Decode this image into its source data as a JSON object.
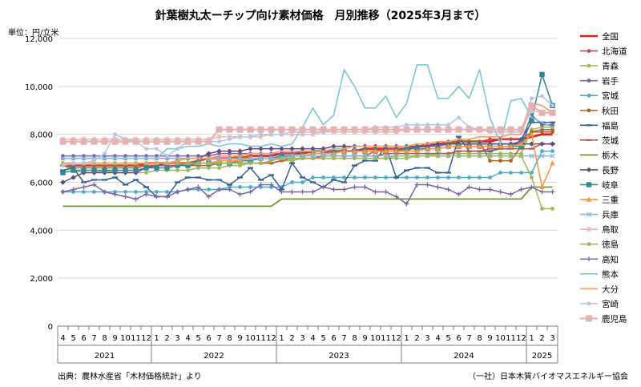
{
  "chart_data": {
    "type": "line",
    "title": "針葉樹丸太ーチップ向け素材価格　月別推移（2025年3月まで）",
    "ylabel": "単位：円/立米",
    "ylim": [
      0,
      12000
    ],
    "yticks": [
      "0",
      "2,000",
      "4,000",
      "6,000",
      "8,000",
      "10,000",
      "12,000"
    ],
    "grid": true,
    "legend_position": "right",
    "x_month_labels": [
      "4",
      "5",
      "6",
      "7",
      "8",
      "9",
      "10",
      "11",
      "12",
      "1",
      "2",
      "3",
      "4",
      "5",
      "6",
      "7",
      "8",
      "9",
      "10",
      "11",
      "12",
      "1",
      "2",
      "3",
      "4",
      "5",
      "6",
      "7",
      "8",
      "9",
      "10",
      "11",
      "12",
      "1",
      "2",
      "3",
      "4",
      "5",
      "6",
      "7",
      "8",
      "9",
      "10",
      "11",
      "12",
      "1",
      "2",
      "3"
    ],
    "x_year_groups": [
      {
        "label": "2021",
        "start": 0,
        "count": 9
      },
      {
        "label": "2022",
        "start": 9,
        "count": 12
      },
      {
        "label": "2023",
        "start": 21,
        "count": 12
      },
      {
        "label": "2024",
        "start": 33,
        "count": 12
      },
      {
        "label": "2025",
        "start": 45,
        "count": 3
      }
    ],
    "source_note": "出典：農林水産省「木材価格統計」より",
    "credit_note": "（一社）日本木質バイオマスエネルギー協会",
    "series": [
      {
        "name": "全国",
        "color": "#e0211b",
        "marker": "none",
        "width": 2.6,
        "values": [
          6700,
          6700,
          6700,
          6700,
          6700,
          6700,
          6700,
          6700,
          6800,
          6800,
          6800,
          6800,
          6800,
          6900,
          7000,
          7000,
          7000,
          7000,
          7100,
          7100,
          7100,
          7200,
          7200,
          7200,
          7300,
          7300,
          7300,
          7300,
          7300,
          7400,
          7400,
          7400,
          7400,
          7400,
          7500,
          7500,
          7600,
          7600,
          7700,
          7700,
          7700,
          7700,
          7800,
          7800,
          7800,
          7900,
          8000,
          8000
        ]
      },
      {
        "name": "北海道",
        "color": "#c0504d",
        "marker": "circle",
        "values": [
          7000,
          7000,
          7000,
          7000,
          7000,
          7000,
          7000,
          7000,
          7000,
          7000,
          7000,
          7000,
          7000,
          7000,
          7000,
          7000,
          7000,
          7000,
          7000,
          7000,
          7000,
          7100,
          7100,
          7100,
          7200,
          7200,
          7300,
          7300,
          7300,
          7300,
          7300,
          7400,
          7400,
          7400,
          7500,
          7600,
          7600,
          7700,
          7700,
          7700,
          7700,
          7800,
          7800,
          7800,
          7800,
          8100,
          8200,
          8200
        ]
      },
      {
        "name": "青森",
        "color": "#9bbb59",
        "marker": "circle",
        "values": [
          6700,
          6500,
          6400,
          6400,
          6500,
          6400,
          6400,
          6400,
          6400,
          6500,
          6500,
          6500,
          6500,
          6600,
          6600,
          6600,
          6700,
          6700,
          6800,
          6800,
          6800,
          6900,
          6900,
          7000,
          7000,
          7000,
          7000,
          7000,
          7000,
          7000,
          7000,
          7000,
          7000,
          7000,
          7100,
          7100,
          7200,
          7200,
          7200,
          7200,
          7200,
          7200,
          7200,
          7200,
          7200,
          8200,
          8300,
          8300
        ]
      },
      {
        "name": "岩手",
        "color": "#8064a2",
        "marker": "circle",
        "values": [
          7100,
          7100,
          7100,
          7100,
          7100,
          7100,
          7100,
          7100,
          7100,
          7100,
          7100,
          7100,
          7100,
          7100,
          7100,
          7200,
          7200,
          7200,
          7200,
          7200,
          7200,
          7200,
          7200,
          7300,
          7300,
          7300,
          7300,
          7300,
          7300,
          7300,
          7300,
          7300,
          7300,
          7300,
          7500,
          7500,
          7500,
          7600,
          7600,
          7600,
          7600,
          7600,
          7600,
          7600,
          7700,
          8800,
          8400,
          8400
        ]
      },
      {
        "name": "宮城",
        "color": "#4bacc6",
        "marker": "circle",
        "values": [
          5600,
          5600,
          5600,
          5600,
          5600,
          5600,
          5600,
          5600,
          5600,
          5600,
          5600,
          5600,
          5700,
          5700,
          5700,
          5700,
          5800,
          5800,
          5800,
          5800,
          5800,
          5800,
          6000,
          6000,
          6200,
          6200,
          6200,
          6200,
          6200,
          6200,
          6200,
          6200,
          6200,
          6200,
          6200,
          6200,
          6200,
          6200,
          6200,
          6200,
          6200,
          6200,
          6400,
          6400,
          6400,
          6400,
          7300,
          7300
        ]
      },
      {
        "name": "秋田",
        "color": "#a9671e",
        "marker": "circle",
        "values": [
          6700,
          6600,
          6600,
          6600,
          6600,
          6600,
          6600,
          6600,
          6700,
          6700,
          6700,
          6700,
          6800,
          6900,
          7000,
          7000,
          7000,
          7100,
          7000,
          7000,
          7000,
          7000,
          7000,
          7000,
          7000,
          7100,
          7100,
          7100,
          7100,
          7100,
          7300,
          7300,
          7300,
          7400,
          7500,
          7500,
          7600,
          7600,
          7700,
          7700,
          7700,
          6900,
          6900,
          6900,
          7500,
          8100,
          8100,
          8100
        ]
      },
      {
        "name": "福島",
        "color": "#376092",
        "marker": "dash",
        "values": [
          6500,
          6600,
          6000,
          6100,
          6100,
          6200,
          5900,
          6100,
          5800,
          5400,
          5400,
          6000,
          6200,
          6200,
          6100,
          6100,
          5900,
          6200,
          6600,
          6100,
          6300,
          5700,
          6800,
          6200,
          6000,
          5800,
          6100,
          6000,
          6700,
          6900,
          6900,
          7500,
          6200,
          6500,
          6600,
          6600,
          6400,
          6400,
          7900,
          7300,
          7300,
          7300,
          7400,
          7400,
          7800,
          8500,
          8500,
          8500
        ]
      },
      {
        "name": "茨城",
        "color": "#c0504d",
        "marker": "dash",
        "values": [
          6700,
          6700,
          6700,
          6700,
          6700,
          6700,
          6700,
          6700,
          6700,
          6700,
          6700,
          6700,
          6700,
          6700,
          6700,
          6800,
          6800,
          6800,
          6800,
          6800,
          6800,
          6900,
          7000,
          7000,
          7000,
          7100,
          7100,
          7100,
          7100,
          7100,
          7100,
          7200,
          7200,
          7200,
          7200,
          7200,
          7200,
          7200,
          7300,
          7300,
          7300,
          7400,
          7400,
          7400,
          7400,
          7400,
          7600,
          7600
        ]
      },
      {
        "name": "栃木",
        "color": "#77933c",
        "marker": "none",
        "width": 1.8,
        "values": [
          5000,
          5000,
          5000,
          5000,
          5000,
          5000,
          5000,
          5000,
          5000,
          5000,
          5000,
          5000,
          5000,
          5000,
          5000,
          5000,
          5000,
          5000,
          5000,
          5000,
          5000,
          5300,
          5300,
          5300,
          5300,
          5300,
          5300,
          5300,
          5300,
          5300,
          5300,
          5300,
          5300,
          5300,
          5300,
          5300,
          5300,
          5300,
          5300,
          5300,
          5300,
          5300,
          5300,
          5300,
          5300,
          5800,
          5800,
          5800
        ]
      },
      {
        "name": "長野",
        "color": "#604a7b",
        "marker": "diamond",
        "values": [
          6000,
          6200,
          6400,
          6400,
          6400,
          6400,
          6400,
          6400,
          6600,
          6700,
          6800,
          6900,
          7000,
          7000,
          7200,
          7300,
          7300,
          7300,
          7400,
          7400,
          7400,
          7400,
          7400,
          7400,
          7400,
          7400,
          7500,
          7500,
          7500,
          7500,
          7500,
          7500,
          7500,
          7500,
          7500,
          7500,
          7600,
          7600,
          7600,
          7600,
          7600,
          7600,
          7600,
          7600,
          7600,
          7600,
          7600,
          7600
        ]
      },
      {
        "name": "岐阜",
        "color": "#31859c",
        "marker": "square",
        "values": [
          6400,
          6500,
          6500,
          6500,
          6500,
          6500,
          6500,
          6500,
          6600,
          6600,
          6600,
          6700,
          6700,
          6800,
          6800,
          6800,
          6800,
          6900,
          6900,
          7000,
          7000,
          7100,
          7100,
          7100,
          7200,
          7200,
          7200,
          7300,
          7300,
          7300,
          7300,
          7300,
          7300,
          7400,
          7400,
          7400,
          7400,
          7500,
          7500,
          7500,
          7500,
          7500,
          7500,
          7500,
          7500,
          8600,
          10500,
          9200
        ]
      },
      {
        "name": "三重",
        "color": "#f79646",
        "marker": "triangle",
        "values": [
          6800,
          6800,
          6800,
          6800,
          6800,
          6800,
          6800,
          6800,
          6800,
          6800,
          6800,
          6800,
          6800,
          6800,
          6800,
          6900,
          6900,
          6900,
          7000,
          7000,
          7000,
          7000,
          7100,
          7100,
          7200,
          7200,
          7200,
          7300,
          7300,
          7300,
          7300,
          7300,
          7300,
          7300,
          7300,
          7400,
          7400,
          7500,
          7500,
          7500,
          7500,
          7500,
          7500,
          7500,
          7600,
          8000,
          5800,
          6800
        ]
      },
      {
        "name": "兵庫",
        "color": "#8eb4e3",
        "marker": "cross",
        "values": [
          7000,
          7000,
          7000,
          7000,
          7000,
          7000,
          7000,
          7000,
          7000,
          7000,
          7000,
          7000,
          7000,
          7000,
          7000,
          7000,
          7000,
          7000,
          7000,
          7000,
          7000,
          7000,
          7100,
          7100,
          7100,
          7100,
          7100,
          7100,
          7100,
          7100,
          7100,
          7100,
          7100,
          7100,
          7100,
          7100,
          7100,
          7100,
          7100,
          7100,
          7100,
          7100,
          7100,
          7100,
          7100,
          7100,
          7100,
          7100
        ]
      },
      {
        "name": "鳥取",
        "color": "#e6b9b8",
        "marker": "star",
        "values": [
          7800,
          7800,
          7800,
          7800,
          7800,
          7800,
          7800,
          7800,
          7800,
          7800,
          7800,
          7800,
          7800,
          7800,
          7800,
          7900,
          7900,
          7900,
          7900,
          7900,
          8000,
          8000,
          8000,
          8000,
          8000,
          8100,
          8100,
          8100,
          8100,
          8100,
          8100,
          8100,
          8100,
          8200,
          8200,
          8200,
          8200,
          8200,
          8200,
          8200,
          8200,
          8200,
          8200,
          8200,
          8200,
          9000,
          8900,
          8900
        ]
      },
      {
        "name": "徳島",
        "color": "#9bbb59",
        "marker": "circle",
        "values": [
          6800,
          6800,
          6800,
          6800,
          6800,
          6800,
          6800,
          6800,
          6800,
          6800,
          6800,
          6800,
          6800,
          6800,
          6800,
          6800,
          6800,
          6800,
          6800,
          6800,
          6900,
          7000,
          7000,
          7000,
          7000,
          7000,
          7000,
          7000,
          7000,
          7000,
          7000,
          7000,
          7100,
          7100,
          7100,
          7100,
          7100,
          7100,
          7100,
          7100,
          7100,
          7100,
          7100,
          7100,
          7100,
          6200,
          4900,
          4900
        ]
      },
      {
        "name": "高知",
        "color": "#8064a2",
        "marker": "plus",
        "values": [
          5600,
          5700,
          5800,
          5900,
          5600,
          5500,
          5400,
          5300,
          5500,
          5400,
          5400,
          5600,
          5700,
          5800,
          5400,
          5700,
          5700,
          5500,
          5600,
          5900,
          5900,
          5600,
          5600,
          5600,
          5600,
          5800,
          5700,
          5700,
          5800,
          5800,
          5600,
          5600,
          5400,
          5100,
          5900,
          5900,
          5800,
          5700,
          5500,
          5800,
          5700,
          5700,
          5600,
          5500,
          5700,
          5800,
          5600,
          5600
        ]
      },
      {
        "name": "熊本",
        "color": "#7fc6d8",
        "marker": "none",
        "width": 1.6,
        "values": [
          7000,
          7000,
          7000,
          7000,
          7000,
          7000,
          7000,
          7000,
          7000,
          7000,
          7400,
          7400,
          7500,
          7500,
          7600,
          7500,
          7600,
          7600,
          7500,
          7500,
          7600,
          7500,
          7600,
          8300,
          9100,
          8400,
          8800,
          10700,
          10000,
          9100,
          9100,
          9600,
          8700,
          9300,
          10900,
          10900,
          9500,
          9500,
          10000,
          9500,
          10700,
          8700,
          7600,
          9400,
          9500,
          8700,
          8500,
          8300
        ]
      },
      {
        "name": "大分",
        "color": "#f2a36b",
        "marker": "none",
        "width": 1.8,
        "values": [
          6800,
          6800,
          6800,
          6800,
          6800,
          6800,
          6800,
          6800,
          6800,
          6800,
          6800,
          6900,
          7000,
          7000,
          7000,
          7100,
          7100,
          7100,
          7200,
          7200,
          7200,
          7300,
          7300,
          7300,
          7300,
          7300,
          7400,
          7400,
          7500,
          7500,
          7500,
          7500,
          7500,
          7500,
          7600,
          7600,
          7700,
          7700,
          7800,
          7800,
          7900,
          7900,
          7900,
          8000,
          8000,
          9300,
          9200,
          8900
        ]
      },
      {
        "name": "宮崎",
        "color": "#b3c6e7",
        "marker": "circle",
        "values": [
          6700,
          6800,
          6800,
          6900,
          7200,
          8000,
          7800,
          7700,
          7400,
          7400,
          7100,
          7400,
          7700,
          7700,
          7700,
          7700,
          7800,
          7900,
          7900,
          8000,
          8000,
          8000,
          8100,
          8100,
          8100,
          8100,
          8200,
          8200,
          8200,
          8200,
          8300,
          8300,
          8300,
          8400,
          8400,
          8400,
          8400,
          8400,
          8700,
          8300,
          8200,
          8100,
          8100,
          8100,
          8100,
          9500,
          9600,
          9200
        ]
      },
      {
        "name": "鹿児島",
        "color": "#e4b3b1",
        "marker": "squarebig",
        "width": 2.2,
        "values": [
          7700,
          7700,
          7700,
          7700,
          7700,
          7700,
          7700,
          7700,
          7700,
          7700,
          7700,
          7700,
          7700,
          7700,
          7700,
          8200,
          8200,
          8200,
          8200,
          8200,
          8200,
          8200,
          8200,
          8200,
          8200,
          8200,
          8200,
          8200,
          8200,
          8200,
          8200,
          8200,
          8200,
          8200,
          8200,
          8200,
          8200,
          8200,
          8200,
          8200,
          8200,
          8200,
          8200,
          8200,
          8200,
          9200,
          8900,
          8900
        ]
      }
    ]
  }
}
